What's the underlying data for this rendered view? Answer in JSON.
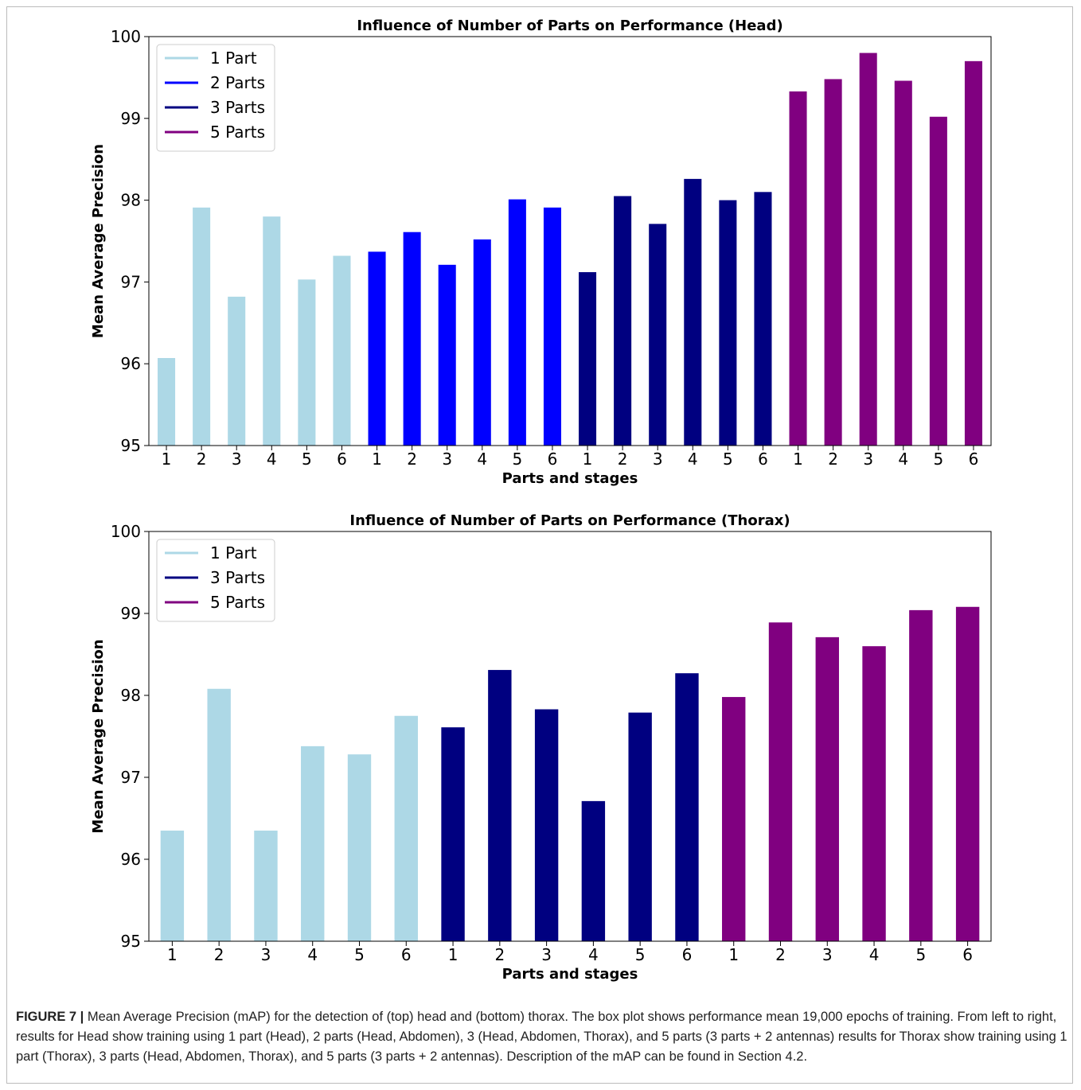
{
  "chart_data": [
    {
      "type": "bar",
      "title": "Influence of Number of Parts on Performance (Head)",
      "xlabel": "Parts and stages",
      "ylabel": "Mean Average Precision",
      "ylim": [
        95,
        100
      ],
      "yticks": [
        95,
        96,
        97,
        98,
        99,
        100
      ],
      "legend": "upper left",
      "series": [
        {
          "name": "1 Part",
          "color": "#add8e6",
          "categories": [
            "1",
            "2",
            "3",
            "4",
            "5",
            "6"
          ],
          "values": [
            96.07,
            97.91,
            96.82,
            97.8,
            97.03,
            97.32
          ]
        },
        {
          "name": "2 Parts",
          "color": "#0000ff",
          "categories": [
            "1",
            "2",
            "3",
            "4",
            "5",
            "6"
          ],
          "values": [
            97.37,
            97.61,
            97.21,
            97.52,
            98.01,
            97.91
          ]
        },
        {
          "name": "3 Parts",
          "color": "#000080",
          "categories": [
            "1",
            "2",
            "3",
            "4",
            "5",
            "6"
          ],
          "values": [
            97.12,
            98.05,
            97.71,
            98.26,
            98.0,
            98.1
          ]
        },
        {
          "name": "5 Parts",
          "color": "#800080",
          "categories": [
            "1",
            "2",
            "3",
            "4",
            "5",
            "6"
          ],
          "values": [
            99.33,
            99.48,
            99.8,
            99.46,
            99.02,
            99.7
          ]
        }
      ]
    },
    {
      "type": "bar",
      "title": "Influence of Number of Parts on Performance (Thorax)",
      "xlabel": "Parts and stages",
      "ylabel": "Mean Average Precision",
      "ylim": [
        95,
        100
      ],
      "yticks": [
        95,
        96,
        97,
        98,
        99,
        100
      ],
      "legend": "upper left",
      "series": [
        {
          "name": "1 Part",
          "color": "#add8e6",
          "categories": [
            "1",
            "2",
            "3",
            "4",
            "5",
            "6"
          ],
          "values": [
            96.35,
            98.08,
            96.35,
            97.38,
            97.28,
            97.75
          ]
        },
        {
          "name": "3 Parts",
          "color": "#000080",
          "categories": [
            "1",
            "2",
            "3",
            "4",
            "5",
            "6"
          ],
          "values": [
            97.61,
            98.31,
            97.83,
            96.71,
            97.79,
            98.27
          ]
        },
        {
          "name": "5 Parts",
          "color": "#800080",
          "categories": [
            "1",
            "2",
            "3",
            "4",
            "5",
            "6"
          ],
          "values": [
            97.98,
            98.89,
            98.71,
            98.6,
            99.04,
            99.08
          ]
        }
      ]
    }
  ],
  "caption": {
    "label": "FIGURE 7 |",
    "text": "Mean Average Precision (mAP) for the detection of (top) head and (bottom) thorax. The box plot shows performance mean 19,000 epochs of training. From left to right, results for Head show training using 1 part (Head), 2 parts (Head, Abdomen), 3 (Head, Abdomen, Thorax), and 5 parts (3 parts + 2 antennas) results for Thorax show training using 1 part (Thorax), 3 parts (Head, Abdomen, Thorax), and 5 parts (3 parts + 2 antennas). Description of the mAP can be found in Section 4.2."
  }
}
